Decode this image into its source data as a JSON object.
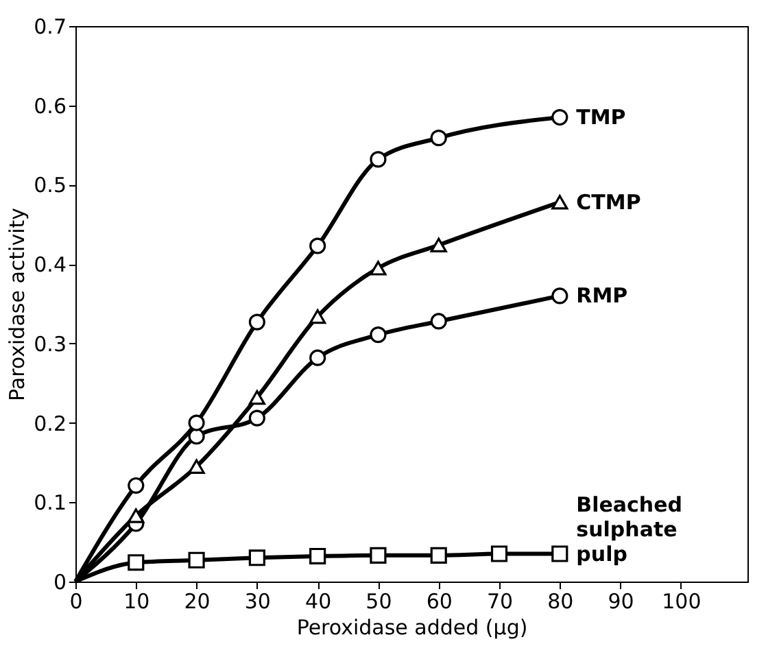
{
  "chart_data": {
    "type": "line",
    "xlabel": "Peroxidase added (μg)",
    "ylabel": "Paroxidase activity",
    "xlim": [
      0,
      111
    ],
    "xticks": [
      0,
      10,
      20,
      30,
      40,
      50,
      60,
      70,
      80,
      90,
      100
    ],
    "ylim": [
      0,
      0.7
    ],
    "yticks": [
      0,
      0.1,
      0.2,
      0.3,
      0.4,
      0.5,
      0.6,
      0.7
    ],
    "grid": false,
    "legend": false,
    "line_style": "solid",
    "series": [
      {
        "name": "TMP",
        "color": "#000000",
        "marker": "circle",
        "x": [
          0,
          10,
          20,
          30,
          40,
          50,
          60,
          80
        ],
        "values": [
          0,
          0.121,
          0.2,
          0.327,
          0.423,
          0.532,
          0.559,
          0.585
        ]
      },
      {
        "name": "CTMP",
        "color": "#000000",
        "marker": "triangle",
        "x": [
          0,
          10,
          20,
          30,
          40,
          50,
          60,
          80
        ],
        "values": [
          0,
          0.083,
          0.145,
          0.232,
          0.334,
          0.395,
          0.424,
          0.478
        ]
      },
      {
        "name": "RMP",
        "color": "#000000",
        "marker": "circle",
        "x": [
          0,
          10,
          20,
          30,
          40,
          50,
          60,
          80
        ],
        "values": [
          0,
          0.073,
          0.183,
          0.206,
          0.282,
          0.311,
          0.328,
          0.36
        ]
      },
      {
        "name": "Bleached sulphate pulp",
        "color": "#000000",
        "marker": "square",
        "x": [
          0,
          10,
          20,
          30,
          40,
          50,
          60,
          70,
          80
        ],
        "values": [
          0,
          0.024,
          0.027,
          0.03,
          0.032,
          0.033,
          0.033,
          0.035,
          0.035
        ]
      }
    ]
  }
}
